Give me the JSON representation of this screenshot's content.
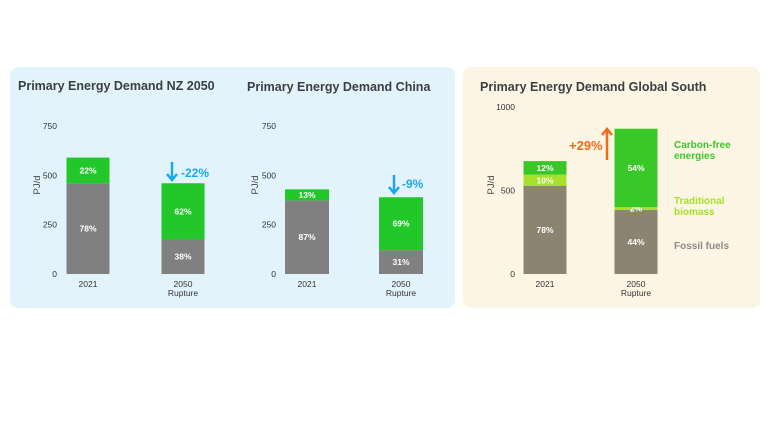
{
  "colors": {
    "fossil": "#808080",
    "carbon_free": "#22c82a",
    "gs_fossil": "#8b8470",
    "gs_carbon_free": "#3ac828",
    "gs_biomass": "#a6e02a",
    "decrease": "#1aa7ec",
    "increase": "#f26a1b",
    "panel_left": "#e3f3fc",
    "panel_right": "#fdf5e4"
  },
  "chart_data": [
    {
      "type": "bar",
      "stacked": true,
      "title": "Primary Energy Demand NZ 2050",
      "ylabel": "PJ/d",
      "ylim": [
        0,
        750
      ],
      "yticks": [
        "0",
        "250",
        "500",
        "750"
      ],
      "ytick_values": [
        0,
        250,
        500,
        750
      ],
      "categories": [
        [
          "2021"
        ],
        [
          "2050",
          "Rupture"
        ]
      ],
      "series": [
        {
          "key": "fossil",
          "values": [
            460,
            175
          ],
          "labels": [
            "78%",
            "38%"
          ]
        },
        {
          "key": "carbon_free",
          "values": [
            130,
            285
          ],
          "labels": [
            "22%",
            "62%"
          ]
        }
      ],
      "annotation": {
        "text": "-22%",
        "direction": "down",
        "bar": 1
      }
    },
    {
      "type": "bar",
      "stacked": true,
      "title": "Primary Energy Demand China",
      "ylabel": "PJ/d",
      "ylim": [
        0,
        750
      ],
      "yticks": [
        "0",
        "250",
        "500",
        "750"
      ],
      "ytick_values": [
        0,
        250,
        500,
        750
      ],
      "categories": [
        [
          "2021"
        ],
        [
          "2050",
          "Rupture"
        ]
      ],
      "series": [
        {
          "key": "fossil",
          "values": [
            373,
            121
          ],
          "labels": [
            "87%",
            "31%"
          ]
        },
        {
          "key": "carbon_free",
          "values": [
            56,
            268
          ],
          "labels": [
            "13%",
            "69%"
          ]
        }
      ],
      "annotation": {
        "text": "-9%",
        "direction": "down",
        "bar": 1
      }
    },
    {
      "type": "bar",
      "stacked": true,
      "title": "Primary Energy Demand Global South",
      "ylabel": "PJ/d",
      "ylim": [
        0,
        1000
      ],
      "yticks": [
        "0",
        "500",
        "1000"
      ],
      "ytick_values": [
        0,
        500,
        1000
      ],
      "categories": [
        [
          "2021"
        ],
        [
          "2050",
          "Rupture"
        ]
      ],
      "series": [
        {
          "key": "gs_fossil",
          "name": "Fossil fuels",
          "values": [
            527,
            383
          ],
          "labels": [
            "78%",
            "44%"
          ]
        },
        {
          "key": "gs_biomass",
          "name": "Traditional biomass",
          "values": [
            68,
            17
          ],
          "labels": [
            "10%",
            "2%"
          ]
        },
        {
          "key": "gs_carbon_free",
          "name": "Carbon-free energies",
          "values": [
            81,
            470
          ],
          "labels": [
            "12%",
            "54%"
          ]
        }
      ],
      "annotation": {
        "text": "+29%",
        "direction": "up",
        "bar": 1
      },
      "legend": [
        {
          "lines": [
            "Carbon-free",
            "energies"
          ],
          "color_key": "gs_carbon_free"
        },
        {
          "lines": [
            "Traditional",
            "biomass"
          ],
          "color_key": "gs_biomass"
        },
        {
          "lines": [
            "Fossil fuels"
          ],
          "color_key": "gs_fossil"
        }
      ],
      "legend_position": "right"
    }
  ]
}
